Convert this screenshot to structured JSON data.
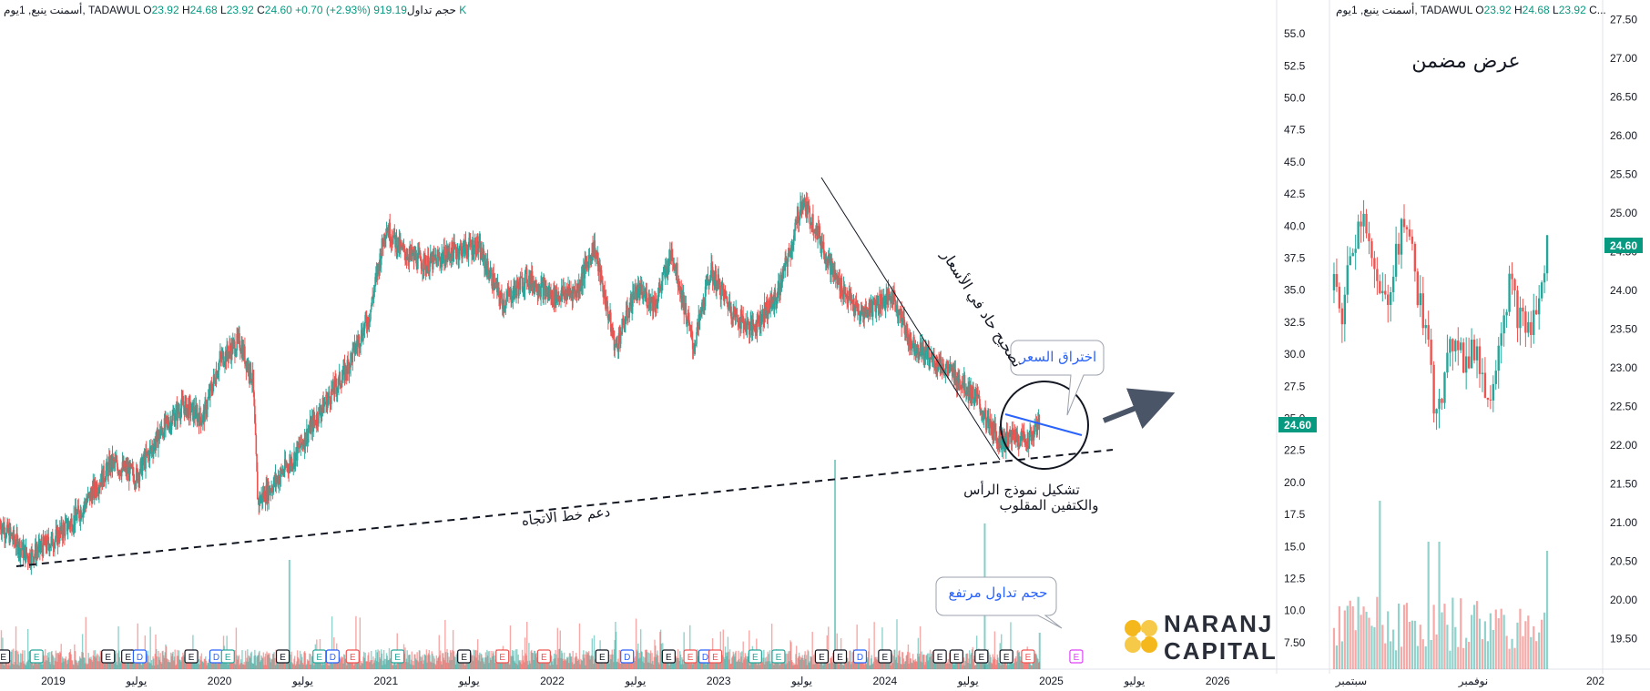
{
  "header_main": {
    "symbol": "أسمنت ينبع, 1يوم, TADAWUL",
    "o_label": "O",
    "o": "23.92",
    "h_label": "H",
    "h": "24.68",
    "l_label": "L",
    "l": "23.92",
    "c_label": "C",
    "c": "24.60",
    "change": "+0.70 (+2.93%)",
    "volume_label": "حجم تداول",
    "volume": "919.19 K"
  },
  "header_inset": {
    "symbol": "أسمنت ينبع, 1يوم, TADAWUL",
    "o_label": "O",
    "o": "23.92",
    "h_label": "H",
    "h": "24.68",
    "l_label": "L",
    "l": "23.92",
    "c_tail": "C..."
  },
  "inset_title": "عرض مضمن",
  "annotations": {
    "correction": "تصحيح حاد في الأسعار",
    "breakout": "اختراق السعر",
    "pattern_line1": "تشكيل نموذج الرأس",
    "pattern_line2": "والكتفين المقلوب",
    "trend_support": "دعم خط الاتجاه",
    "high_volume": "حجم تداول مرتفع"
  },
  "logo": {
    "line1": "NARANJ",
    "line2": "CAPITAL"
  },
  "colors": {
    "up": "#26a69a",
    "down": "#ef5350",
    "price_badge": "#089981",
    "blue_line": "#2962ff",
    "arrow": "#4a5568",
    "logo_accent": "#f5b81c"
  },
  "chart_data": [
    {
      "type": "candlestick",
      "title": "",
      "price_axis": {
        "ylim": [
          6.5,
          56.5
        ],
        "ticks": [
          "55.0",
          "52.5",
          "50.0",
          "47.5",
          "45.0",
          "42.5",
          "40.0",
          "37.5",
          "35.0",
          "32.5",
          "30.0",
          "27.5",
          "25.0",
          "22.5",
          "20.0",
          "17.5",
          "15.0",
          "12.5",
          "10.0",
          "7.50"
        ]
      },
      "time_axis": {
        "labels": [
          "2019",
          "يوليو",
          "2020",
          "يوليو",
          "2021",
          "يوليو",
          "2022",
          "يوليو",
          "2023",
          "يوليو",
          "2024",
          "يوليو",
          "2025",
          "يوليو",
          "2026"
        ]
      },
      "last_price": "24.60",
      "price_path": [
        {
          "x": 2018.68,
          "y": 16.8
        },
        {
          "x": 2018.85,
          "y": 14.2
        },
        {
          "x": 2019.0,
          "y": 15.5
        },
        {
          "x": 2019.15,
          "y": 17.5
        },
        {
          "x": 2019.35,
          "y": 21.5
        },
        {
          "x": 2019.5,
          "y": 20.5
        },
        {
          "x": 2019.65,
          "y": 24.0
        },
        {
          "x": 2019.78,
          "y": 26.0
        },
        {
          "x": 2019.9,
          "y": 25.0
        },
        {
          "x": 2020.0,
          "y": 29.5
        },
        {
          "x": 2020.12,
          "y": 31.0
        },
        {
          "x": 2020.2,
          "y": 28.0
        },
        {
          "x": 2020.23,
          "y": 18.5
        },
        {
          "x": 2020.3,
          "y": 19.5
        },
        {
          "x": 2020.45,
          "y": 22.0
        },
        {
          "x": 2020.6,
          "y": 25.5
        },
        {
          "x": 2020.75,
          "y": 28.5
        },
        {
          "x": 2020.9,
          "y": 33.0
        },
        {
          "x": 2021.0,
          "y": 40.0
        },
        {
          "x": 2021.1,
          "y": 38.0
        },
        {
          "x": 2021.25,
          "y": 37.0
        },
        {
          "x": 2021.4,
          "y": 38.0
        },
        {
          "x": 2021.55,
          "y": 38.5
        },
        {
          "x": 2021.7,
          "y": 34.0
        },
        {
          "x": 2021.85,
          "y": 36.0
        },
        {
          "x": 2022.0,
          "y": 34.5
        },
        {
          "x": 2022.15,
          "y": 35.0
        },
        {
          "x": 2022.25,
          "y": 38.5
        },
        {
          "x": 2022.38,
          "y": 30.5
        },
        {
          "x": 2022.5,
          "y": 35.0
        },
        {
          "x": 2022.62,
          "y": 34.0
        },
        {
          "x": 2022.72,
          "y": 38.0
        },
        {
          "x": 2022.85,
          "y": 30.5
        },
        {
          "x": 2022.95,
          "y": 36.5
        },
        {
          "x": 2023.1,
          "y": 33.0
        },
        {
          "x": 2023.2,
          "y": 32.0
        },
        {
          "x": 2023.35,
          "y": 34.5
        },
        {
          "x": 2023.45,
          "y": 39.0
        },
        {
          "x": 2023.5,
          "y": 42.0
        },
        {
          "x": 2023.58,
          "y": 40.0
        },
        {
          "x": 2023.7,
          "y": 36.0
        },
        {
          "x": 2023.85,
          "y": 33.0
        },
        {
          "x": 2023.95,
          "y": 34.0
        },
        {
          "x": 2024.05,
          "y": 34.5
        },
        {
          "x": 2024.15,
          "y": 31.0
        },
        {
          "x": 2024.3,
          "y": 29.5
        },
        {
          "x": 2024.45,
          "y": 28.0
        },
        {
          "x": 2024.55,
          "y": 26.5
        },
        {
          "x": 2024.62,
          "y": 24.5
        },
        {
          "x": 2024.7,
          "y": 23.2
        },
        {
          "x": 2024.78,
          "y": 23.6
        },
        {
          "x": 2024.86,
          "y": 23.3
        },
        {
          "x": 2024.93,
          "y": 24.6
        }
      ],
      "volume_spikes": [
        2020.42,
        2023.7,
        2024.6,
        2024.93
      ]
    },
    {
      "type": "candlestick",
      "title": "عرض مضمن",
      "price_axis": {
        "ylim": [
          19.25,
          27.55
        ],
        "ticks": [
          "27.50",
          "27.00",
          "26.50",
          "26.00",
          "25.50",
          "25.00",
          "24.50",
          "24.00",
          "23.50",
          "23.00",
          "22.50",
          "22.00",
          "21.50",
          "21.00",
          "20.50",
          "20.00",
          "19.50"
        ]
      },
      "time_axis": {
        "labels": [
          "سبتمبر",
          "نوفمبر",
          "202"
        ]
      },
      "last_price": "24.60",
      "price_path": [
        {
          "x": 1,
          "y": 24.0
        },
        {
          "x": 4,
          "y": 23.7
        },
        {
          "x": 8,
          "y": 24.6
        },
        {
          "x": 12,
          "y": 25.1
        },
        {
          "x": 16,
          "y": 24.1
        },
        {
          "x": 20,
          "y": 23.8
        },
        {
          "x": 24,
          "y": 24.5
        },
        {
          "x": 28,
          "y": 24.9
        },
        {
          "x": 32,
          "y": 24.0
        },
        {
          "x": 36,
          "y": 23.2
        },
        {
          "x": 38,
          "y": 22.6
        },
        {
          "x": 42,
          "y": 22.8
        },
        {
          "x": 46,
          "y": 23.5
        },
        {
          "x": 50,
          "y": 23.0
        },
        {
          "x": 54,
          "y": 23.3
        },
        {
          "x": 58,
          "y": 22.5
        },
        {
          "x": 62,
          "y": 23.4
        },
        {
          "x": 66,
          "y": 24.1
        },
        {
          "x": 70,
          "y": 23.6
        },
        {
          "x": 74,
          "y": 23.5
        },
        {
          "x": 78,
          "y": 24.0
        },
        {
          "x": 80,
          "y": 24.6
        }
      ]
    }
  ]
}
